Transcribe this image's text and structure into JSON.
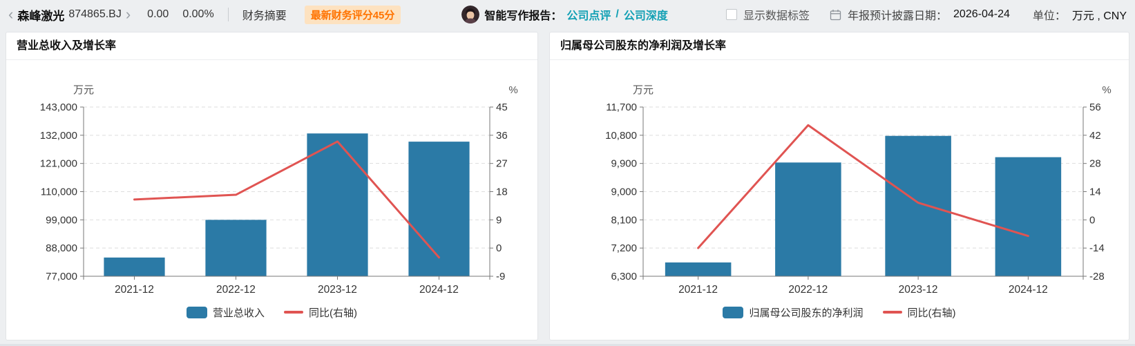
{
  "header": {
    "back_icon": "‹",
    "forward_icon": "›",
    "stock_name": "森峰激光",
    "stock_code": "874865.BJ",
    "price": "0.00",
    "change_percent": "0.00%",
    "tab_financial_summary": "财务摘要",
    "score_badge": "最新财务评分45分",
    "ai_report_label": "智能写作报告：",
    "ai_link_comment": "公司点评",
    "ai_link_separator": "/",
    "ai_link_deep": "公司深度",
    "show_data_labels": "显示数据标签",
    "report_date_label": "年报预计披露日期：",
    "report_date_value": "2026-04-24",
    "unit_label": "单位：",
    "unit_value": "万元 , CNY"
  },
  "colors": {
    "bar": "#2b7aa6",
    "line": "#e05452",
    "link_teal": "#12a0b4",
    "badge_text": "#ff7300",
    "badge_bg": "#fde2c0",
    "axis": "#777777",
    "grid": "#dddddd",
    "tick_text": "#333333"
  },
  "chart_data": [
    {
      "type": "bar",
      "title": "营业总收入及增长率",
      "categories": [
        "2021-12",
        "2022-12",
        "2023-12",
        "2024-12"
      ],
      "series": [
        {
          "name": "营业总收入",
          "type": "bar",
          "axis": "left",
          "color": "#2b7aa6",
          "values": [
            84300,
            99000,
            132700,
            129500
          ]
        },
        {
          "name": "同比(右轴)",
          "type": "line",
          "axis": "right",
          "color": "#e05452",
          "values": [
            15.5,
            17,
            34,
            -3
          ]
        }
      ],
      "left_axis": {
        "name": "万元",
        "min": 77000,
        "max": 143000,
        "ticks": [
          "143,000",
          "132,000",
          "121,000",
          "110,000",
          "99,000",
          "88,000",
          "77,000"
        ]
      },
      "right_axis": {
        "name": "%",
        "min": -9,
        "max": 45,
        "ticks": [
          "45",
          "36",
          "27",
          "18",
          "9",
          "0",
          "-9"
        ]
      },
      "grid": true,
      "legend_position": "bottom"
    },
    {
      "type": "bar",
      "title": "归属母公司股东的净利润及增长率",
      "categories": [
        "2021-12",
        "2022-12",
        "2023-12",
        "2024-12"
      ],
      "series": [
        {
          "name": "归属母公司股东的净利润",
          "type": "bar",
          "axis": "left",
          "color": "#2b7aa6",
          "values": [
            6740,
            9930,
            10780,
            10100
          ]
        },
        {
          "name": "同比(右轴)",
          "type": "line",
          "axis": "right",
          "color": "#e05452",
          "values": [
            -14,
            47,
            8.5,
            -8
          ]
        }
      ],
      "left_axis": {
        "name": "万元",
        "min": 6300,
        "max": 11700,
        "ticks": [
          "11,700",
          "10,800",
          "9,900",
          "9,000",
          "8,100",
          "7,200",
          "6,300"
        ]
      },
      "right_axis": {
        "name": "%",
        "min": -28,
        "max": 56,
        "ticks": [
          "56",
          "42",
          "28",
          "14",
          "0",
          "-14",
          "-28"
        ]
      },
      "grid": true,
      "legend_position": "bottom"
    }
  ]
}
